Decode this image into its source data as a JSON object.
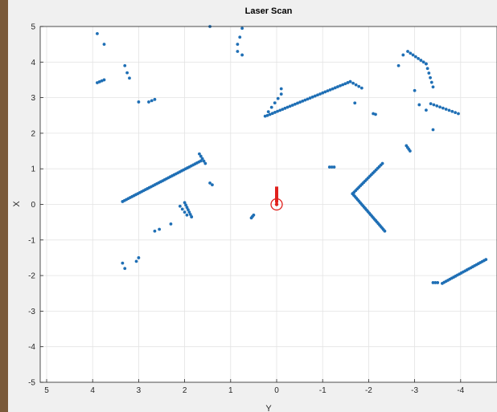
{
  "chart_data": {
    "type": "scatter",
    "title": "Laser Scan",
    "xlabel": "Y",
    "ylabel": "X",
    "xlim": [
      5,
      -5
    ],
    "ylim": [
      -5,
      5
    ],
    "x_reversed": true,
    "grid": true,
    "xticks": [
      "5",
      "4",
      "3",
      "2",
      "1",
      "0",
      "-1",
      "-2",
      "-3",
      "-4"
    ],
    "yticks": [
      "5",
      "4",
      "3",
      "2",
      "1",
      "0",
      "-1",
      "-2",
      "-3",
      "-4",
      "-5"
    ],
    "colors": {
      "points": "#1f6fb5",
      "robot": "#e0201c",
      "grid": "#e3e3e3",
      "axes": "#262626",
      "plot_bg": "#ffffff"
    },
    "robot": {
      "position": [
        0,
        0
      ],
      "heading": [
        0.5,
        0
      ]
    },
    "segments": [
      {
        "from": [
          3.35,
          0.08
        ],
        "to": [
          1.65,
          1.22
        ],
        "n": 42
      },
      {
        "from": [
          1.68,
          1.42
        ],
        "to": [
          1.55,
          1.15
        ],
        "n": 5
      },
      {
        "from": [
          3.9,
          3.42
        ],
        "to": [
          3.75,
          3.5
        ],
        "n": 4
      },
      {
        "from": [
          0.2,
          2.5
        ],
        "to": [
          -1.6,
          3.45
        ],
        "n": 34
      },
      {
        "from": [
          -0.1,
          3.1
        ],
        "to": [
          0.25,
          2.48
        ],
        "n": 6
      },
      {
        "from": [
          -1.6,
          3.45
        ],
        "to": [
          -1.85,
          3.27
        ],
        "n": 5
      },
      {
        "from": [
          -2.3,
          1.15
        ],
        "to": [
          -1.65,
          0.3
        ],
        "n": 20
      },
      {
        "from": [
          -1.65,
          0.3
        ],
        "to": [
          -2.35,
          -0.75
        ],
        "n": 26
      },
      {
        "from": [
          -3.6,
          -2.22
        ],
        "to": [
          -4.55,
          -1.55
        ],
        "n": 24
      },
      {
        "from": [
          -3.4,
          -2.2
        ],
        "to": [
          -3.5,
          -2.2
        ],
        "n": 3
      },
      {
        "from": [
          -2.85,
          4.3
        ],
        "to": [
          -3.25,
          3.95
        ],
        "n": 8
      },
      {
        "from": [
          -3.25,
          3.95
        ],
        "to": [
          -3.4,
          3.3
        ],
        "n": 6
      },
      {
        "from": [
          -3.35,
          2.83
        ],
        "to": [
          -3.95,
          2.55
        ],
        "n": 10
      },
      {
        "from": [
          2.0,
          0.05
        ],
        "to": [
          1.85,
          -0.35
        ],
        "n": 7
      },
      {
        "from": [
          2.1,
          -0.05
        ],
        "to": [
          1.95,
          -0.3
        ],
        "n": 4
      },
      {
        "from": [
          2.78,
          2.88
        ],
        "to": [
          2.65,
          2.95
        ],
        "n": 3
      },
      {
        "from": [
          0.5,
          -0.3
        ],
        "to": [
          0.55,
          -0.38
        ],
        "n": 3
      },
      {
        "from": [
          -1.15,
          1.05
        ],
        "to": [
          -1.25,
          1.05
        ],
        "n": 3
      },
      {
        "from": [
          -2.82,
          1.65
        ],
        "to": [
          -2.9,
          1.5
        ],
        "n": 4
      }
    ],
    "points": [
      [
        3.9,
        4.8
      ],
      [
        3.75,
        4.5
      ],
      [
        3.3,
        3.9
      ],
      [
        3.25,
        3.7
      ],
      [
        3.2,
        3.55
      ],
      [
        3.0,
        2.88
      ],
      [
        0.75,
        4.95
      ],
      [
        0.8,
        4.7
      ],
      [
        0.85,
        4.3
      ],
      [
        0.75,
        4.2
      ],
      [
        1.45,
        5.0
      ],
      [
        0.85,
        4.5
      ],
      [
        1.45,
        0.6
      ],
      [
        1.4,
        0.55
      ],
      [
        3.35,
        -1.65
      ],
      [
        3.3,
        -1.8
      ],
      [
        3.0,
        -1.5
      ],
      [
        3.05,
        -1.6
      ],
      [
        2.65,
        -0.75
      ],
      [
        2.55,
        -0.7
      ],
      [
        2.3,
        -0.55
      ],
      [
        1.85,
        -0.35
      ],
      [
        -2.1,
        2.55
      ],
      [
        -2.15,
        2.53
      ],
      [
        -2.65,
        3.9
      ],
      [
        -2.75,
        4.2
      ],
      [
        -3.0,
        3.2
      ],
      [
        -3.1,
        2.8
      ],
      [
        -3.25,
        2.65
      ],
      [
        -3.4,
        2.1
      ],
      [
        -1.7,
        2.85
      ],
      [
        -0.1,
        3.25
      ]
    ]
  }
}
